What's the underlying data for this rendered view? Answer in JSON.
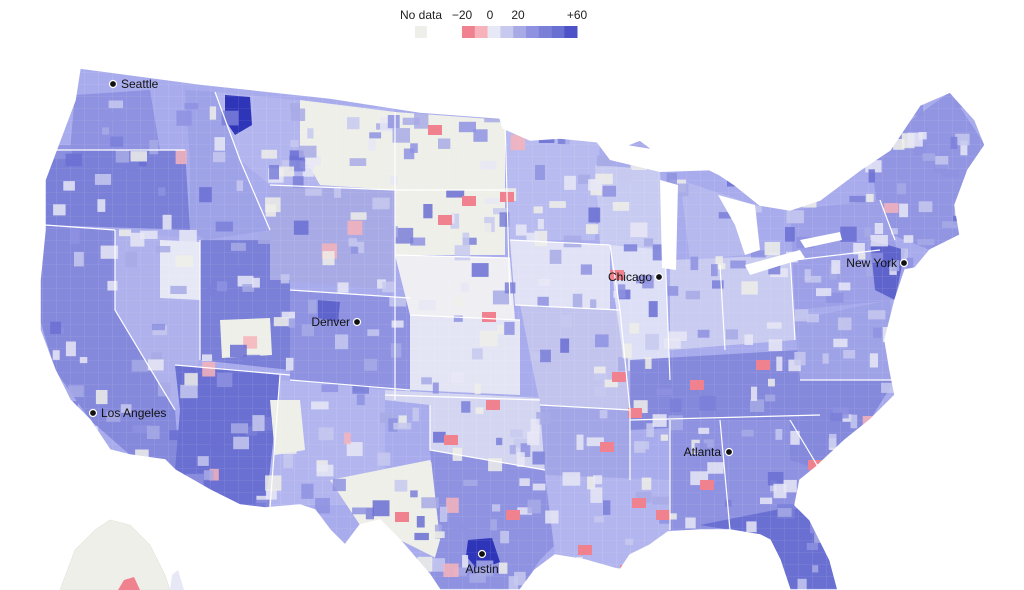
{
  "legend": {
    "no_data_label": "No data",
    "tick_labels": [
      "−20",
      "0",
      "20",
      "+60"
    ],
    "no_data_color": "#efefe9",
    "scale_colors": [
      "#f0828f",
      "#f6b3bb",
      "#e7e8f6",
      "#c7c9ee",
      "#a7aae5",
      "#8e92e0",
      "#7a7fd8",
      "#6a6fd2",
      "#4d52c6"
    ]
  },
  "map": {
    "land_fill": "#a9acec",
    "state_border_color": "#ffffff",
    "nodata_fill": "#efefe9",
    "cities": [
      {
        "name": "Seattle"
      },
      {
        "name": "Denver"
      },
      {
        "name": "Los Angeles"
      },
      {
        "name": "Chicago"
      },
      {
        "name": "New York"
      },
      {
        "name": "Atlanta"
      },
      {
        "name": "Austin"
      }
    ]
  }
}
